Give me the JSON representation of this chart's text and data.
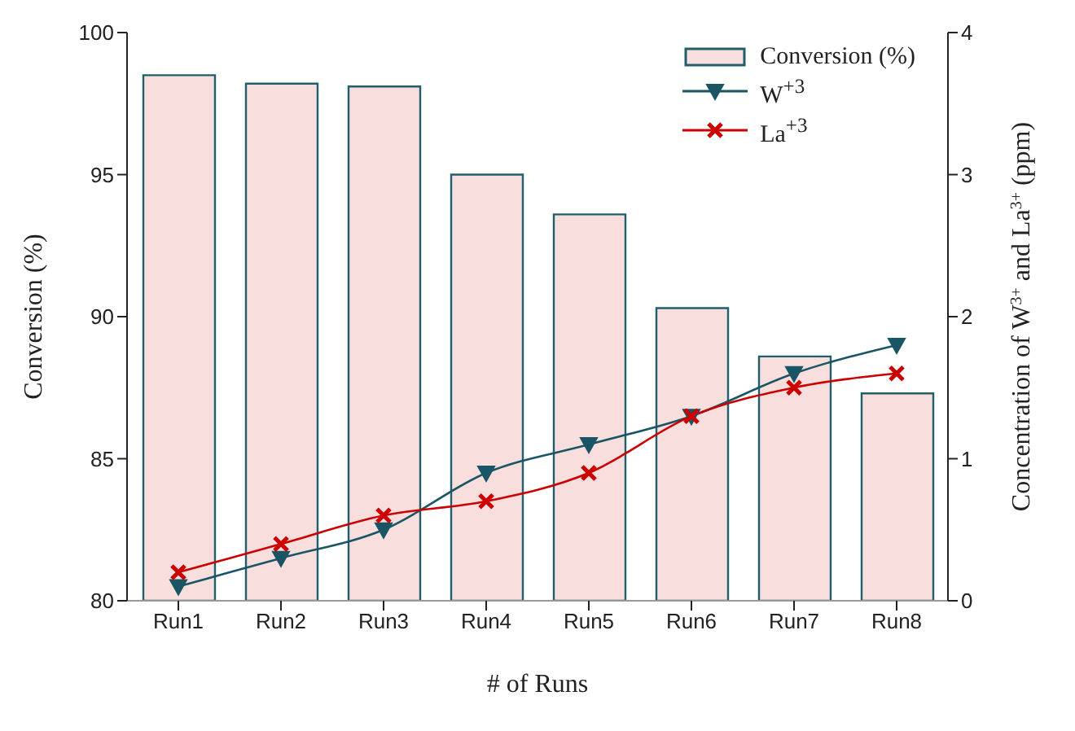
{
  "chart_data": {
    "type": "bar",
    "xlabel": "# of Runs",
    "ylabel": "Conversion (%)",
    "y2label": "Concentration of W$^{3+}$ and La$^{3+}$ (ppm)",
    "categories": [
      "Run1",
      "Run2",
      "Run3",
      "Run4",
      "Run5",
      "Run6",
      "Run7",
      "Run8"
    ],
    "series": [
      {
        "name": "Conversion (%)",
        "color": "#f9dede",
        "values": [
          98.5,
          98.2,
          98.1,
          95.0,
          93.6,
          90.3,
          88.6,
          87.3
        ]
      },
      {
        "name": "W$^{+3}$",
        "type": "line",
        "axis": "y2",
        "color": "#1a5566",
        "marker": "triangle",
        "values": [
          0.1,
          0.3,
          0.5,
          0.9,
          1.1,
          1.3,
          1.6,
          1.8
        ]
      },
      {
        "name": "La$^{+3}$",
        "type": "line",
        "axis": "y2",
        "color": "#cc0000",
        "marker": "cross",
        "values": [
          0.2,
          0.4,
          0.6,
          0.7,
          0.9,
          1.3,
          1.5,
          1.6
        ]
      }
    ],
    "ylim": [
      80,
      100
    ],
    "yticks": [
      80,
      85,
      90,
      95,
      100
    ],
    "y2lim": [
      0,
      4
    ],
    "y2ticks": [
      0,
      1,
      2,
      3,
      4
    ],
    "legend": "top right",
    "grid": false
  }
}
